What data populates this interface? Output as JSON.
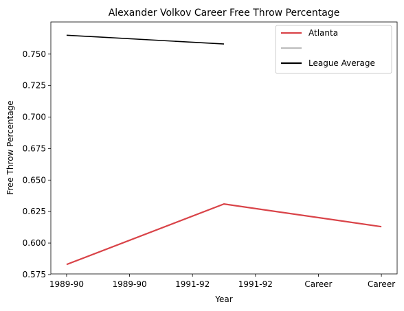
{
  "chart_data": {
    "type": "line",
    "title": "Alexander Volkov  Career Free Throw Percentage",
    "xlabel": "Year",
    "ylabel": "Free Throw Percentage",
    "x_tick_labels": [
      "1989-90",
      "1989-90",
      "1991-92",
      "1991-92",
      "Career",
      "Career"
    ],
    "ylim": [
      0.5755,
      0.7755
    ],
    "yticks": [
      0.575,
      0.6,
      0.625,
      0.65,
      0.675,
      0.7,
      0.725,
      0.75
    ],
    "ytick_labels": [
      "0.575",
      "0.600",
      "0.625",
      "0.650",
      "0.675",
      "0.700",
      "0.725",
      "0.750"
    ],
    "grid": false,
    "legend_position": "top-right",
    "series": [
      {
        "name": "Atlanta",
        "color": "#d94348",
        "x": [
          0,
          2.5,
          5
        ],
        "values": [
          0.583,
          0.631,
          0.613
        ]
      },
      {
        "name": "",
        "color": "#bdbdbd",
        "x": [],
        "values": []
      },
      {
        "name": "League Average",
        "color": "#000000",
        "x": [
          0,
          2.5
        ],
        "values": [
          0.765,
          0.758
        ]
      }
    ]
  }
}
